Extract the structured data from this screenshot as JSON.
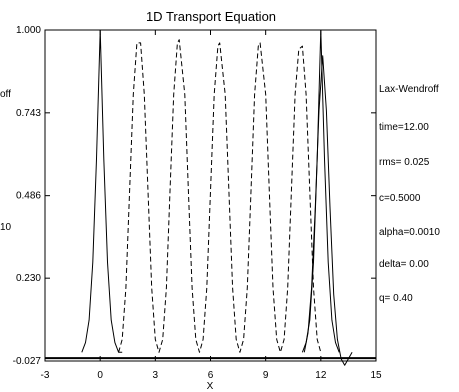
{
  "chart_data": {
    "type": "line",
    "title": "1D Transport Equation",
    "xlabel": "X",
    "ylabel": "",
    "xlim": [
      -3,
      15
    ],
    "ylim": [
      -0.027,
      1.0
    ],
    "x_ticks": [
      -3,
      0,
      3,
      6,
      9,
      12,
      15
    ],
    "y_ticks": [
      "1.000",
      "0.743",
      "0.486",
      "0.230",
      "-0.027"
    ],
    "y_tick_values": [
      1.0,
      0.743,
      0.486,
      0.23,
      -0.027
    ],
    "grid": false,
    "legend": "none",
    "series": [
      {
        "style": "solid",
        "points": [
          [
            -1.0,
            0.0
          ],
          [
            -0.8,
            0.03
          ],
          [
            -0.6,
            0.1
          ],
          [
            -0.4,
            0.28
          ],
          [
            -0.2,
            0.6
          ],
          [
            0.0,
            1.0
          ],
          [
            0.2,
            0.6
          ],
          [
            0.4,
            0.28
          ],
          [
            0.6,
            0.1
          ],
          [
            0.8,
            0.03
          ],
          [
            1.0,
            0.0
          ],
          [
            1.2,
            0.0
          ]
        ]
      },
      {
        "style": "dashed",
        "points": [
          [
            1.0,
            0.0
          ],
          [
            1.2,
            0.04
          ],
          [
            1.4,
            0.2
          ],
          [
            1.6,
            0.5
          ],
          [
            1.8,
            0.8
          ],
          [
            2.0,
            0.96
          ],
          [
            2.2,
            0.96
          ],
          [
            2.4,
            0.8
          ],
          [
            2.6,
            0.5
          ],
          [
            2.8,
            0.2
          ],
          [
            3.0,
            0.04
          ],
          [
            3.2,
            0.0
          ],
          [
            3.4,
            0.04
          ],
          [
            3.6,
            0.2
          ],
          [
            3.8,
            0.5
          ],
          [
            4.0,
            0.8
          ],
          [
            4.2,
            0.96
          ],
          [
            4.3,
            0.97
          ],
          [
            4.6,
            0.8
          ],
          [
            4.8,
            0.5
          ],
          [
            5.0,
            0.2
          ],
          [
            5.2,
            0.04
          ],
          [
            5.4,
            0.0
          ],
          [
            5.6,
            0.04
          ],
          [
            5.8,
            0.2
          ],
          [
            6.0,
            0.5
          ],
          [
            6.2,
            0.8
          ],
          [
            6.4,
            0.95
          ],
          [
            6.5,
            0.96
          ],
          [
            6.8,
            0.8
          ],
          [
            7.0,
            0.5
          ],
          [
            7.2,
            0.2
          ],
          [
            7.4,
            0.04
          ],
          [
            7.6,
            0.0
          ],
          [
            7.8,
            0.04
          ],
          [
            8.0,
            0.2
          ],
          [
            8.2,
            0.5
          ],
          [
            8.4,
            0.8
          ],
          [
            8.6,
            0.95
          ],
          [
            8.7,
            0.96
          ],
          [
            9.0,
            0.8
          ],
          [
            9.2,
            0.5
          ],
          [
            9.4,
            0.2
          ],
          [
            9.6,
            0.04
          ],
          [
            9.8,
            0.0
          ],
          [
            10.0,
            0.04
          ],
          [
            10.2,
            0.2
          ],
          [
            10.4,
            0.5
          ],
          [
            10.6,
            0.8
          ],
          [
            10.8,
            0.94
          ],
          [
            11.0,
            0.95
          ],
          [
            11.2,
            0.8
          ],
          [
            11.4,
            0.5
          ],
          [
            11.6,
            0.2
          ],
          [
            11.8,
            0.04
          ],
          [
            12.0,
            0.0
          ]
        ]
      },
      {
        "style": "solid",
        "points": [
          [
            11.0,
            0.0
          ],
          [
            11.2,
            0.03
          ],
          [
            11.4,
            0.1
          ],
          [
            11.6,
            0.28
          ],
          [
            11.8,
            0.6
          ],
          [
            12.0,
            1.0
          ],
          [
            12.2,
            0.6
          ],
          [
            12.4,
            0.28
          ],
          [
            12.6,
            0.1
          ],
          [
            12.8,
            0.03
          ],
          [
            13.0,
            0.0
          ]
        ]
      },
      {
        "style": "solid",
        "points": [
          [
            11.1,
            0.0
          ],
          [
            11.3,
            0.06
          ],
          [
            11.5,
            0.2
          ],
          [
            11.7,
            0.45
          ],
          [
            11.9,
            0.75
          ],
          [
            12.1,
            0.92
          ],
          [
            12.3,
            0.75
          ],
          [
            12.5,
            0.45
          ],
          [
            12.7,
            0.18
          ],
          [
            12.9,
            0.04
          ],
          [
            13.1,
            -0.02
          ],
          [
            13.3,
            -0.04
          ],
          [
            13.5,
            -0.02
          ],
          [
            13.7,
            0.0
          ]
        ]
      }
    ],
    "baseline": {
      "y": -0.018,
      "x_from": -3,
      "x_to": 15
    },
    "annotations_right": [
      "Lax-Wendroff",
      "time=12.00",
      "rms= 0.025",
      "c=0.5000",
      "alpha=0.0010",
      "delta= 0.00",
      "q= 0.40"
    ],
    "annotations_left": [
      "off",
      "10"
    ]
  }
}
